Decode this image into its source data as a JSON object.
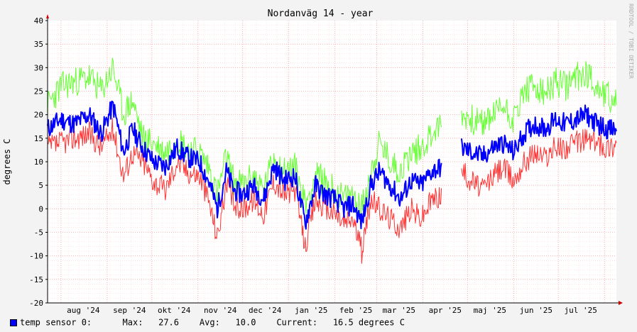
{
  "chart_data": {
    "type": "line",
    "title": "Nordanväg 14 - year",
    "ylabel": "degrees C",
    "watermark": "RRDTOOL / TOBI OETIKER",
    "ylim": [
      -20,
      40
    ],
    "yticks": [
      40,
      35,
      30,
      25,
      20,
      15,
      10,
      5,
      0,
      -5,
      -10,
      -15,
      -20
    ],
    "xlim": [
      "2024-07-23",
      "2025-08-09"
    ],
    "month_labels": [
      {
        "label": "aug '24",
        "date": "2024-08-16"
      },
      {
        "label": "sep '24",
        "date": "2024-09-16"
      },
      {
        "label": "okt '24",
        "date": "2024-10-16"
      },
      {
        "label": "nov '24",
        "date": "2024-11-16"
      },
      {
        "label": "dec '24",
        "date": "2024-12-16"
      },
      {
        "label": "jan '25",
        "date": "2025-01-16"
      },
      {
        "label": "feb '25",
        "date": "2025-02-15"
      },
      {
        "label": "mar '25",
        "date": "2025-03-16"
      },
      {
        "label": "apr '25",
        "date": "2025-04-16"
      },
      {
        "label": "maj '25",
        "date": "2025-05-16"
      },
      {
        "label": "jun '25",
        "date": "2025-06-16"
      },
      {
        "label": "jul '25",
        "date": "2025-07-16"
      }
    ],
    "grid": true,
    "colors": {
      "avg": "#0000ff",
      "max": "#66ff33",
      "min": "#ff3333",
      "grid": "#ff9999",
      "axis": "#000000",
      "arrow": "#cc0000"
    },
    "gap": [
      "2025-04-20",
      "2025-04-27"
    ],
    "series": [
      {
        "name": "temp sensor 0",
        "key": "avg",
        "x": [
          "2024-07-23",
          "2024-08-01",
          "2024-08-10",
          "2024-08-20",
          "2024-08-28",
          "2024-09-05",
          "2024-09-12",
          "2024-09-18",
          "2024-09-25",
          "2024-10-02",
          "2024-10-10",
          "2024-10-18",
          "2024-10-25",
          "2024-11-02",
          "2024-11-08",
          "2024-11-14",
          "2024-11-20",
          "2024-11-25",
          "2024-12-01",
          "2024-12-08",
          "2024-12-15",
          "2024-12-22",
          "2024-12-29",
          "2025-01-05",
          "2025-01-12",
          "2025-01-19",
          "2025-01-25",
          "2025-02-01",
          "2025-02-07",
          "2025-02-13",
          "2025-02-19",
          "2025-02-25",
          "2025-03-03",
          "2025-03-10",
          "2025-03-17",
          "2025-03-24",
          "2025-03-31",
          "2025-04-07",
          "2025-04-14",
          "2025-04-20",
          "2025-04-27",
          "2025-05-04",
          "2025-05-11",
          "2025-05-18",
          "2025-05-25",
          "2025-06-01",
          "2025-06-08",
          "2025-06-15",
          "2025-06-22",
          "2025-06-29",
          "2025-07-06",
          "2025-07-13",
          "2025-07-20",
          "2025-07-27",
          "2025-08-03",
          "2025-08-09"
        ],
        "values": [
          17,
          19,
          18,
          20,
          16,
          22,
          12,
          17,
          13,
          10,
          9,
          13,
          11,
          10,
          6,
          0,
          8,
          4,
          3,
          5,
          2,
          9,
          6,
          7,
          -3,
          5,
          3,
          2,
          0,
          1,
          -3,
          5,
          8,
          5,
          2,
          6,
          5,
          8,
          9,
          null,
          13,
          12,
          11,
          13,
          14,
          12,
          16,
          18,
          17,
          19,
          18,
          19,
          20,
          18,
          17,
          16.5
        ]
      },
      {
        "name": "max",
        "key": "max",
        "x": [
          "2024-07-23",
          "2024-08-01",
          "2024-08-10",
          "2024-08-20",
          "2024-08-28",
          "2024-09-05",
          "2024-09-12",
          "2024-09-18",
          "2024-09-25",
          "2024-10-02",
          "2024-10-10",
          "2024-10-18",
          "2024-10-25",
          "2024-11-02",
          "2024-11-08",
          "2024-11-14",
          "2024-11-20",
          "2024-11-25",
          "2024-12-01",
          "2024-12-08",
          "2024-12-15",
          "2024-12-22",
          "2024-12-29",
          "2025-01-05",
          "2025-01-12",
          "2025-01-19",
          "2025-01-25",
          "2025-02-01",
          "2025-02-07",
          "2025-02-13",
          "2025-02-19",
          "2025-02-25",
          "2025-03-03",
          "2025-03-10",
          "2025-03-17",
          "2025-03-24",
          "2025-03-31",
          "2025-04-07",
          "2025-04-14",
          "2025-04-20",
          "2025-04-27",
          "2025-05-04",
          "2025-05-11",
          "2025-05-18",
          "2025-05-25",
          "2025-06-01",
          "2025-06-08",
          "2025-06-15",
          "2025-06-22",
          "2025-06-29",
          "2025-07-06",
          "2025-07-13",
          "2025-07-20",
          "2025-07-27",
          "2025-08-03",
          "2025-08-09"
        ],
        "values": [
          22,
          26,
          27,
          28,
          25,
          30,
          20,
          23,
          15,
          14,
          12,
          15,
          13,
          12,
          9,
          3,
          11,
          6,
          5,
          7,
          4,
          11,
          8,
          9,
          1,
          7,
          6,
          4,
          2,
          3,
          0,
          8,
          14,
          10,
          8,
          12,
          13,
          16,
          18,
          null,
          20,
          19,
          18,
          20,
          22,
          19,
          25,
          26,
          24,
          27,
          26,
          28,
          29,
          26,
          24,
          22
        ]
      },
      {
        "name": "min",
        "key": "min",
        "x": [
          "2024-07-23",
          "2024-08-01",
          "2024-08-10",
          "2024-08-20",
          "2024-08-28",
          "2024-09-05",
          "2024-09-12",
          "2024-09-18",
          "2024-09-25",
          "2024-10-02",
          "2024-10-10",
          "2024-10-18",
          "2024-10-25",
          "2024-11-02",
          "2024-11-08",
          "2024-11-14",
          "2024-11-20",
          "2024-11-25",
          "2024-12-01",
          "2024-12-08",
          "2024-12-15",
          "2024-12-22",
          "2024-12-29",
          "2025-01-05",
          "2025-01-12",
          "2025-01-19",
          "2025-01-25",
          "2025-02-01",
          "2025-02-07",
          "2025-02-13",
          "2025-02-19",
          "2025-02-25",
          "2025-03-03",
          "2025-03-10",
          "2025-03-17",
          "2025-03-24",
          "2025-03-31",
          "2025-04-07",
          "2025-04-14",
          "2025-04-20",
          "2025-04-27",
          "2025-05-04",
          "2025-05-11",
          "2025-05-18",
          "2025-05-25",
          "2025-06-01",
          "2025-06-08",
          "2025-06-15",
          "2025-06-22",
          "2025-06-29",
          "2025-07-06",
          "2025-07-13",
          "2025-07-20",
          "2025-07-27",
          "2025-08-03",
          "2025-08-09"
        ],
        "values": [
          13,
          14,
          15,
          16,
          13,
          17,
          7,
          12,
          10,
          6,
          4,
          10,
          8,
          7,
          2,
          -6,
          5,
          1,
          0,
          2,
          -1,
          6,
          3,
          4,
          -8,
          2,
          0,
          -1,
          -3,
          -2,
          -9,
          2,
          0,
          -2,
          -4,
          0,
          -2,
          2,
          3,
          null,
          8,
          6,
          4,
          7,
          9,
          6,
          10,
          12,
          11,
          13,
          13,
          14,
          15,
          14,
          13,
          14
        ]
      }
    ],
    "legend": {
      "label": "temp sensor 0:",
      "max_label": "Max:",
      "max_value": "27.6",
      "avg_label": "Avg:",
      "avg_value": "10.0",
      "current_label": "Current:",
      "current_value": "16.5 degrees C"
    }
  }
}
